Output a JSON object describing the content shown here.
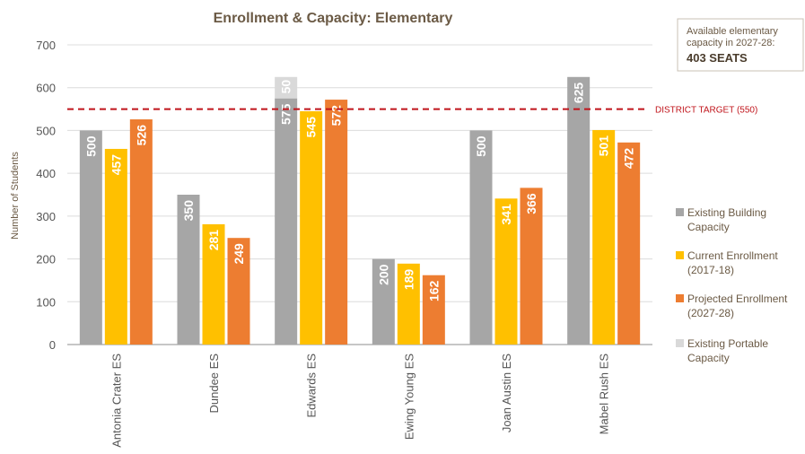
{
  "chart_data": {
    "type": "bar",
    "title": "Enrollment & Capacity: Elementary",
    "ylabel": "Number of Students",
    "xlabel": "",
    "ylim": [
      0,
      700
    ],
    "yticks": [
      0,
      100,
      200,
      300,
      400,
      500,
      600,
      700
    ],
    "grid": true,
    "categories": [
      "Antonia Crater ES",
      "Dundee ES",
      "Edwards ES",
      "Ewing Young ES",
      "Joan Austin ES",
      "Mabel Rush ES"
    ],
    "series": [
      {
        "name": "Existing Building Capacity",
        "color": "#a6a6a6",
        "values": [
          500,
          350,
          575,
          200,
          500,
          625
        ]
      },
      {
        "name": "Current Enrollment (2017-18)",
        "color": "#ffc000",
        "values": [
          457,
          281,
          545,
          189,
          341,
          501
        ]
      },
      {
        "name": "Projected Enrollment (2027-28)",
        "color": "#ed7d31",
        "values": [
          526,
          249,
          572,
          162,
          366,
          472
        ]
      },
      {
        "name": "Existing Portable Capacity",
        "color": "#d9d9d9",
        "values": [
          0,
          0,
          50,
          0,
          0,
          0
        ],
        "stacked_on": "Existing Building Capacity"
      }
    ],
    "reference_line": {
      "label": "DISTRICT TARGET (550)",
      "value": 550,
      "color": "#c0141b",
      "style": "dashed"
    },
    "legend": {
      "position": "right",
      "entries": [
        {
          "lines": [
            "Existing Building",
            "Capacity"
          ],
          "color": "#a6a6a6"
        },
        {
          "lines": [
            "Current Enrollment",
            "(2017-18)"
          ],
          "color": "#ffc000"
        },
        {
          "lines": [
            "Projected Enrollment",
            "(2027-28)"
          ],
          "color": "#ed7d31"
        },
        {
          "lines": [
            "Existing Portable",
            "Capacity"
          ],
          "color": "#d9d9d9"
        }
      ]
    }
  },
  "callout": {
    "line1": "Available elementary",
    "line2": "capacity in 2027-28:",
    "value": "403 SEATS"
  }
}
